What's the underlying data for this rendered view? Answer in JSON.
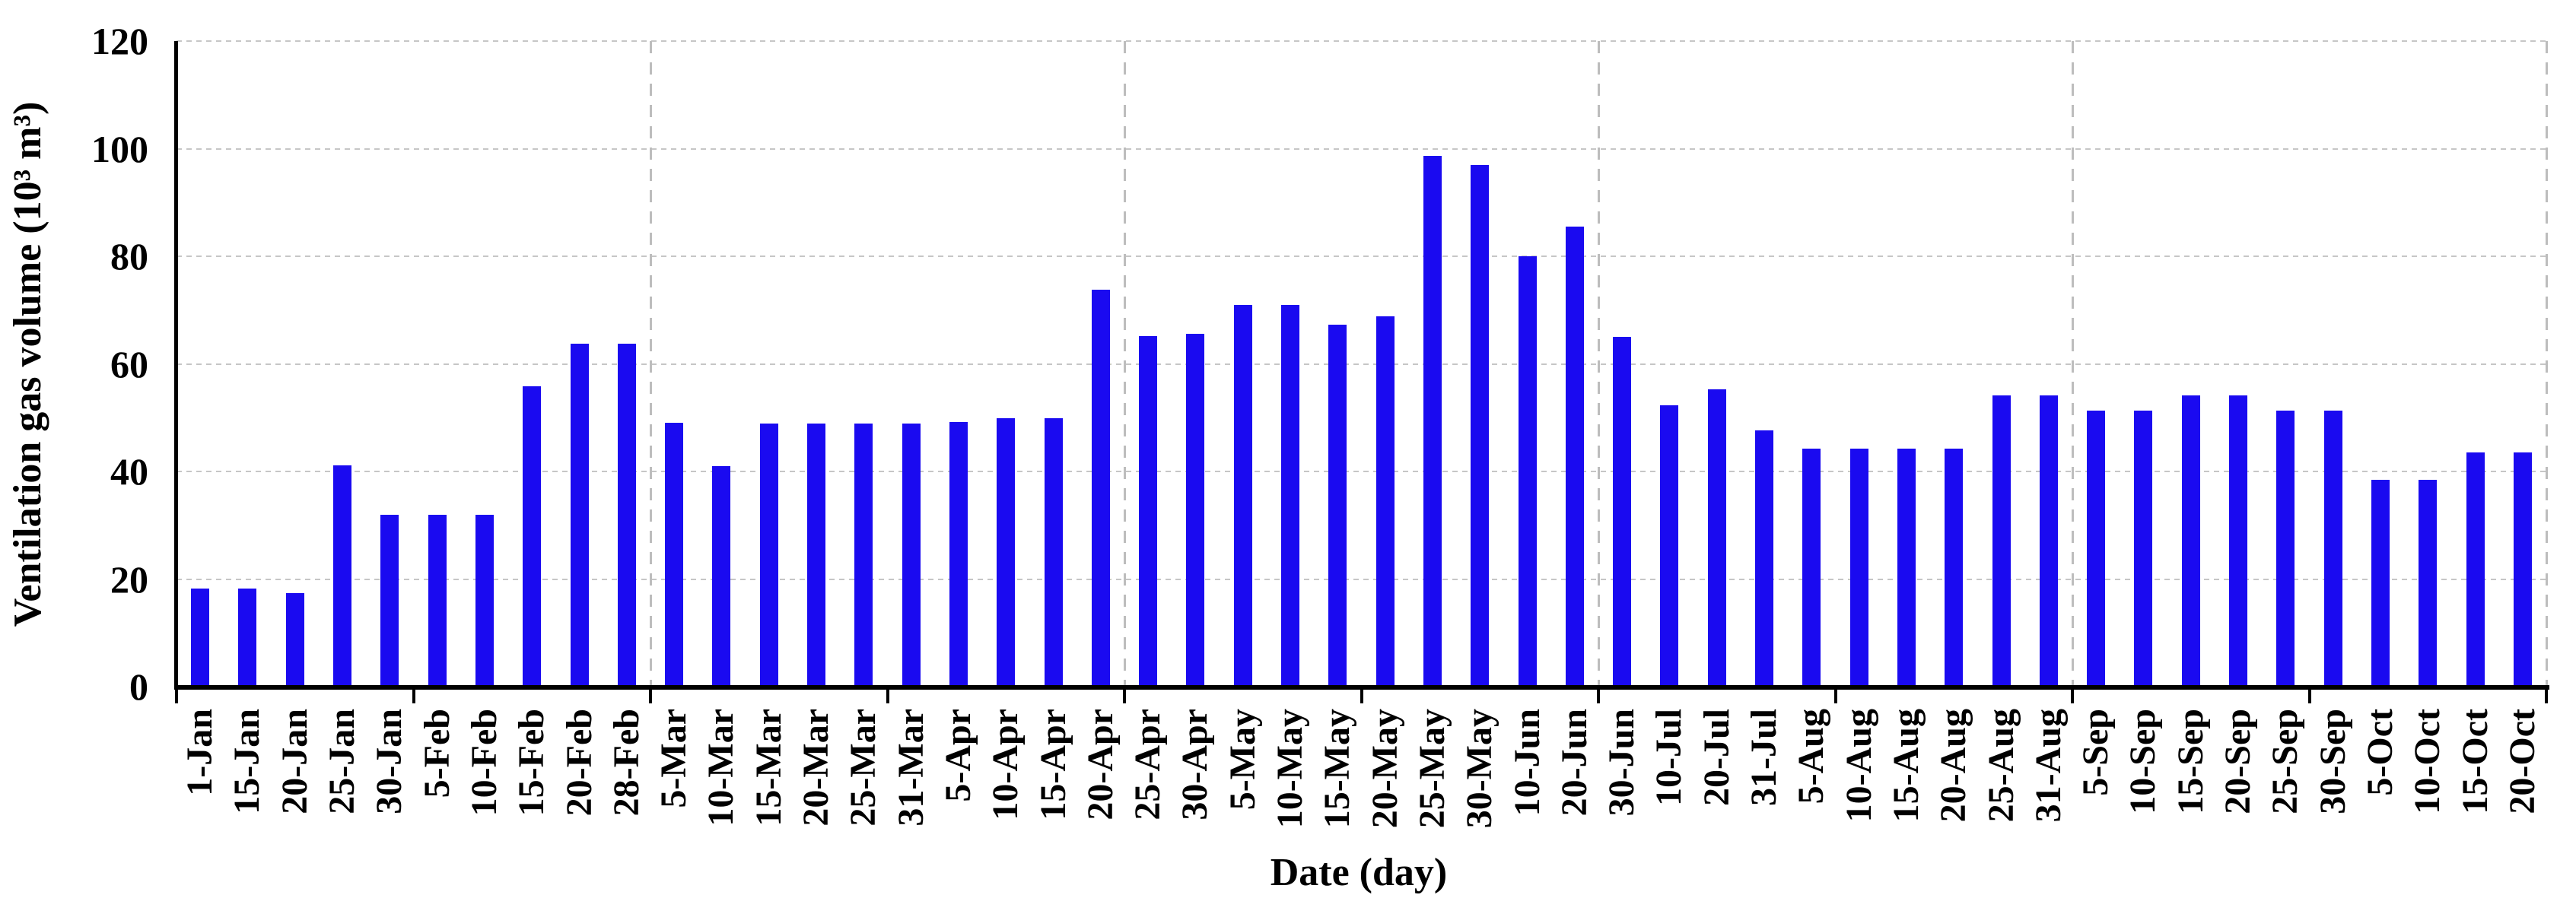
{
  "chart_data": {
    "type": "bar",
    "xlabel": "Date (day)",
    "ylabel": "Ventilation gas volume (10³ m³)",
    "categories": [
      "1-Jan",
      "15-Jan",
      "20-Jan",
      "25-Jan",
      "30-Jan",
      "5-Feb",
      "10-Feb",
      "15-Feb",
      "20-Feb",
      "28-Feb",
      "5-Mar",
      "10-Mar",
      "15-Mar",
      "20-Mar",
      "25-Mar",
      "31-Mar",
      "5-Apr",
      "10-Apr",
      "15-Apr",
      "20-Apr",
      "25-Apr",
      "30-Apr",
      "5-May",
      "10-May",
      "15-May",
      "20-May",
      "25-May",
      "30-May",
      "10-Jun",
      "20-Jun",
      "30-Jun",
      "10-Jul",
      "20-Jul",
      "31-Jul",
      "5-Aug",
      "10-Aug",
      "15-Aug",
      "20-Aug",
      "25-Aug",
      "31-Aug",
      "5-Sep",
      "10-Sep",
      "15-Sep",
      "20-Sep",
      "25-Sep",
      "30-Sep",
      "5-Oct",
      "10-Oct",
      "15-Oct",
      "20-Oct"
    ],
    "values": [
      18.2,
      18.2,
      17.4,
      41.1,
      31.9,
      31.9,
      31.9,
      55.9,
      63.8,
      63.8,
      49.1,
      41.0,
      48.9,
      48.9,
      48.9,
      48.9,
      49.2,
      49.9,
      49.9,
      73.8,
      65.2,
      65.6,
      70.9,
      70.9,
      67.3,
      68.8,
      98.6,
      97.0,
      80.0,
      85.5,
      65.0,
      52.3,
      55.3,
      47.6,
      44.2,
      44.2,
      44.2,
      44.2,
      54.1,
      54.1,
      51.3,
      51.3,
      54.1,
      54.1,
      51.3,
      51.3,
      38.4,
      38.4,
      43.6,
      43.6
    ],
    "y_ticks": [
      0,
      20,
      40,
      60,
      80,
      100,
      120
    ],
    "ylim": [
      0,
      120
    ],
    "grid": "horizontal dotted every 20, dashed vertical divider every 10 categories, ticks every 5 categories",
    "legend": "none",
    "bar_color": "#1a0af0",
    "axis_color": "#000000",
    "gridline_color": "#c6c6c6",
    "divider_color": "#bdbdbd"
  }
}
